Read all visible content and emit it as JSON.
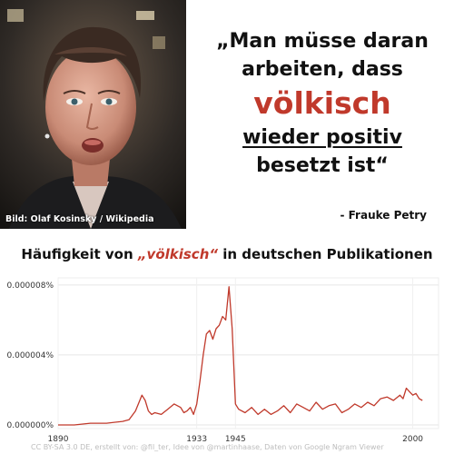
{
  "photo": {
    "credit": "Bild: Olaf Kosinsky / Wikipedia"
  },
  "quote": {
    "line1": "„Man müsse daran",
    "line2": "arbeiten, dass",
    "keyword": "völkisch",
    "line4": "wieder positiv",
    "line5": "besetzt ist“",
    "attribution": "- Frauke Petry"
  },
  "chart_title": {
    "before": "Häufigkeit von ",
    "keyword": "„völkisch“",
    "after": " in deutschen Publikationen"
  },
  "chart_data": {
    "type": "line",
    "title": "Häufigkeit von „völkisch“ in deutschen Publikationen",
    "xlabel": "",
    "ylabel": "",
    "xlim": [
      1890,
      2008
    ],
    "ylim": [
      0,
      8.2e-06
    ],
    "y_ticks": [
      "0.000000%",
      "0.000004%",
      "0.000008%"
    ],
    "y_tick_values": [
      0,
      4e-06,
      8e-06
    ],
    "x_ticks": [
      "1890",
      "1933",
      "1945",
      "2000"
    ],
    "x_tick_values": [
      1890,
      1933,
      1945,
      2000
    ],
    "grid": true,
    "series": [
      {
        "color": "#c0392b",
        "x": [
          1890,
          1895,
          1900,
          1905,
          1910,
          1912,
          1914,
          1916,
          1917,
          1918,
          1919,
          1920,
          1922,
          1924,
          1926,
          1928,
          1929,
          1930,
          1931,
          1932,
          1933,
          1934,
          1935,
          1936,
          1937,
          1938,
          1939,
          1940,
          1941,
          1942,
          1943,
          1944,
          1945,
          1946,
          1948,
          1950,
          1952,
          1954,
          1956,
          1958,
          1960,
          1962,
          1964,
          1966,
          1968,
          1970,
          1972,
          1974,
          1976,
          1978,
          1980,
          1982,
          1984,
          1986,
          1988,
          1990,
          1992,
          1994,
          1996,
          1997,
          1998,
          1999,
          2000,
          2001,
          2002,
          2003
        ],
        "y": [
          0.0,
          0.0,
          1e-07,
          1e-07,
          2e-07,
          3e-07,
          8e-07,
          1.7e-06,
          1.4e-06,
          8e-07,
          6e-07,
          7e-07,
          6e-07,
          9e-07,
          1.2e-06,
          1e-06,
          7e-07,
          8e-07,
          1e-06,
          6e-07,
          1.2e-06,
          2.5e-06,
          4e-06,
          5.2e-06,
          5.4e-06,
          4.9e-06,
          5.5e-06,
          5.7e-06,
          6.2e-06,
          6e-06,
          7.9e-06,
          5.5e-06,
          1.2e-06,
          9e-07,
          7e-07,
          1e-06,
          6e-07,
          9e-07,
          6e-07,
          8e-07,
          1.1e-06,
          7e-07,
          1.2e-06,
          1e-06,
          8e-07,
          1.3e-06,
          9e-07,
          1.1e-06,
          1.2e-06,
          7e-07,
          9e-07,
          1.2e-06,
          1e-06,
          1.3e-06,
          1.1e-06,
          1.5e-06,
          1.6e-06,
          1.4e-06,
          1.7e-06,
          1.5e-06,
          2.1e-06,
          1.9e-06,
          1.7e-06,
          1.8e-06,
          1.5e-06,
          1.4e-06
        ]
      }
    ]
  },
  "footer": "CC BY-SA 3.0 DE, erstellt von: @fil_ter, Idee von @martinhaase, Daten von Google Ngram Viewer",
  "colors": {
    "accent": "#c0392b",
    "text": "#111111",
    "grid": "#e6e6e6",
    "footer": "#bdbdbd"
  }
}
